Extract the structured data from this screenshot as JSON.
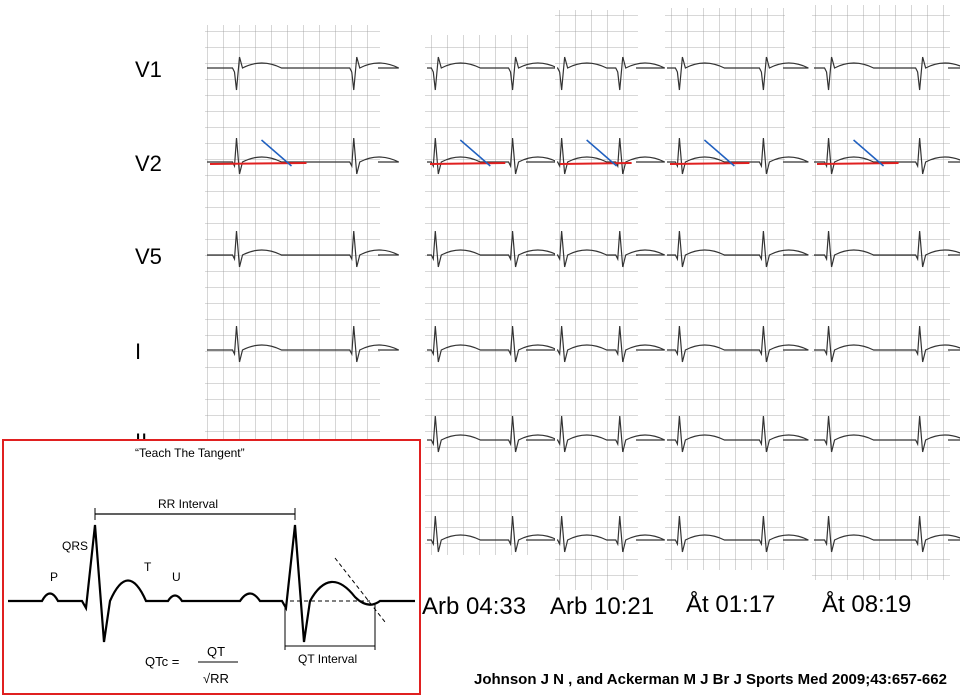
{
  "lead_labels": [
    "V1",
    "V2",
    "V5",
    "I",
    "II"
  ],
  "strip_labels": [
    "Arb 04:33",
    "Arb 10:21",
    "Åt 01:17",
    "Åt 08:19"
  ],
  "inset": {
    "title": "“Teach The Tangent”",
    "rr_interval": "RR Interval",
    "qrs": "QRS",
    "p": "P",
    "t": "T",
    "u": "U",
    "qtc": "QTc =",
    "qt": "QT",
    "sqrt_rr": "√RR",
    "qt_interval": "QT Interval"
  },
  "citation": "Johnson J N , and Ackerman M J Br J Sports Med 2009;43:657-662"
}
